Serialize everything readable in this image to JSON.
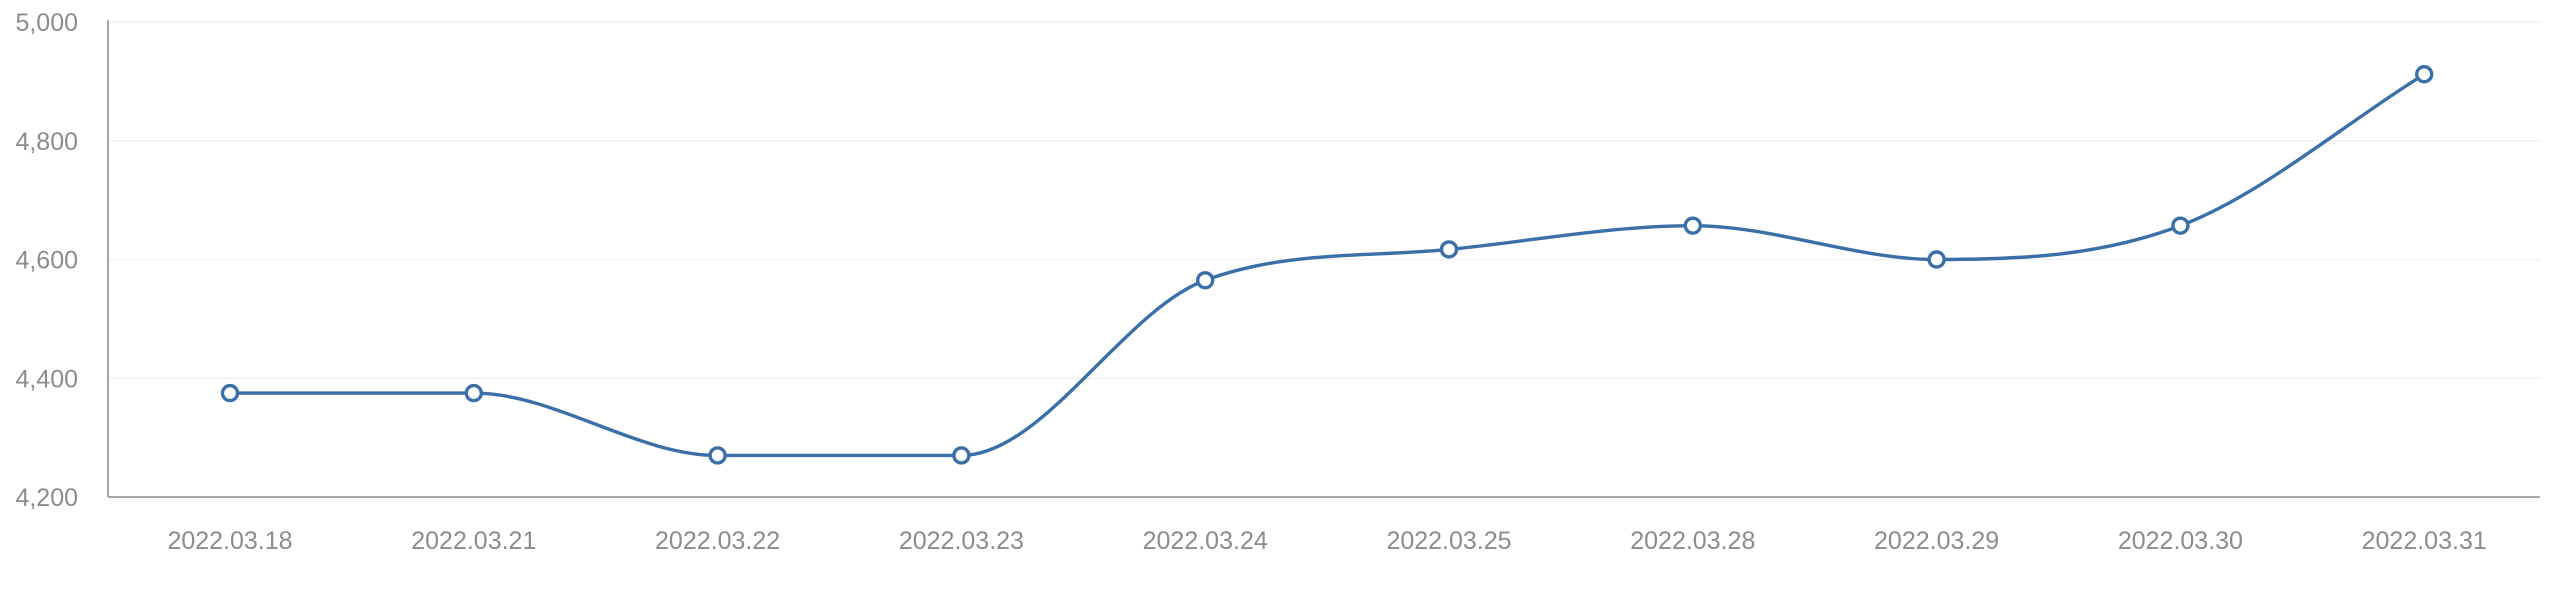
{
  "chart_data": {
    "type": "line",
    "title": "",
    "xlabel": "",
    "ylabel": "",
    "categories": [
      "2022.03.18",
      "2022.03.21",
      "2022.03.22",
      "2022.03.23",
      "2022.03.24",
      "2022.03.25",
      "2022.03.28",
      "2022.03.29",
      "2022.03.30",
      "2022.03.31"
    ],
    "series": [
      {
        "values": [
          4375,
          4375,
          4270,
          4270,
          4565,
          4617,
          4657,
          4600,
          4657,
          4912
        ]
      }
    ],
    "ylim": [
      4200,
      5000
    ],
    "yticks": [
      4200,
      4400,
      4600,
      4800,
      5000
    ],
    "ytick_labels": [
      "4,200",
      "4,400",
      "4,600",
      "4,800",
      "5,000"
    ],
    "grid": "horizontal",
    "smooth": true,
    "colors": {
      "series": "#3a6fa8",
      "tick_text": "#8c8c8c",
      "axis": "#a8a8a8",
      "grid": "#f1f1f1"
    }
  }
}
